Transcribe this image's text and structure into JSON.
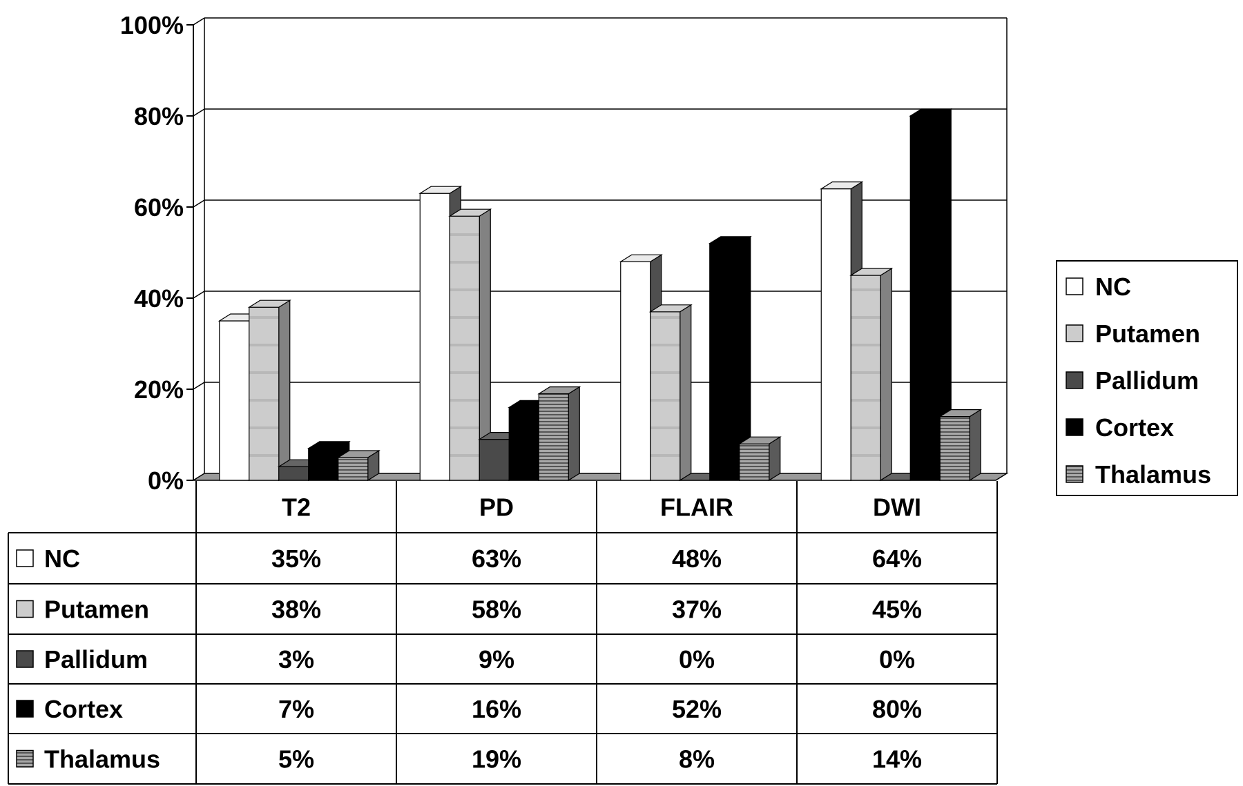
{
  "chart_data": {
    "type": "bar",
    "title": "",
    "xlabel": "",
    "ylabel": "",
    "ylim": [
      0,
      100
    ],
    "y_ticks": [
      "0%",
      "20%",
      "40%",
      "60%",
      "80%",
      "100%"
    ],
    "grid": true,
    "three_d": true,
    "legend_position": "right",
    "data_table": true,
    "categories": [
      "T2",
      "PD",
      "FLAIR",
      "DWI"
    ],
    "series": [
      {
        "name": "NC",
        "color": "#ffffff",
        "values": [
          35,
          63,
          48,
          64
        ],
        "labels": [
          "35%",
          "63%",
          "48%",
          "64%"
        ]
      },
      {
        "name": "Putamen",
        "color": "#c8c8c8",
        "values": [
          38,
          58,
          37,
          45
        ],
        "labels": [
          "38%",
          "58%",
          "37%",
          "45%"
        ]
      },
      {
        "name": "Pallidum",
        "color": "#4a4a4a",
        "values": [
          3,
          9,
          0,
          0
        ],
        "labels": [
          "3%",
          "9%",
          "0%",
          "0%"
        ]
      },
      {
        "name": "Cortex",
        "color": "#000000",
        "values": [
          7,
          16,
          52,
          80
        ],
        "labels": [
          "7%",
          "16%",
          "52%",
          "80%"
        ]
      },
      {
        "name": "Thalamus",
        "color": "#8a8a8a",
        "values": [
          5,
          19,
          8,
          14
        ],
        "labels": [
          "5%",
          "19%",
          "8%",
          "14%"
        ]
      }
    ]
  }
}
